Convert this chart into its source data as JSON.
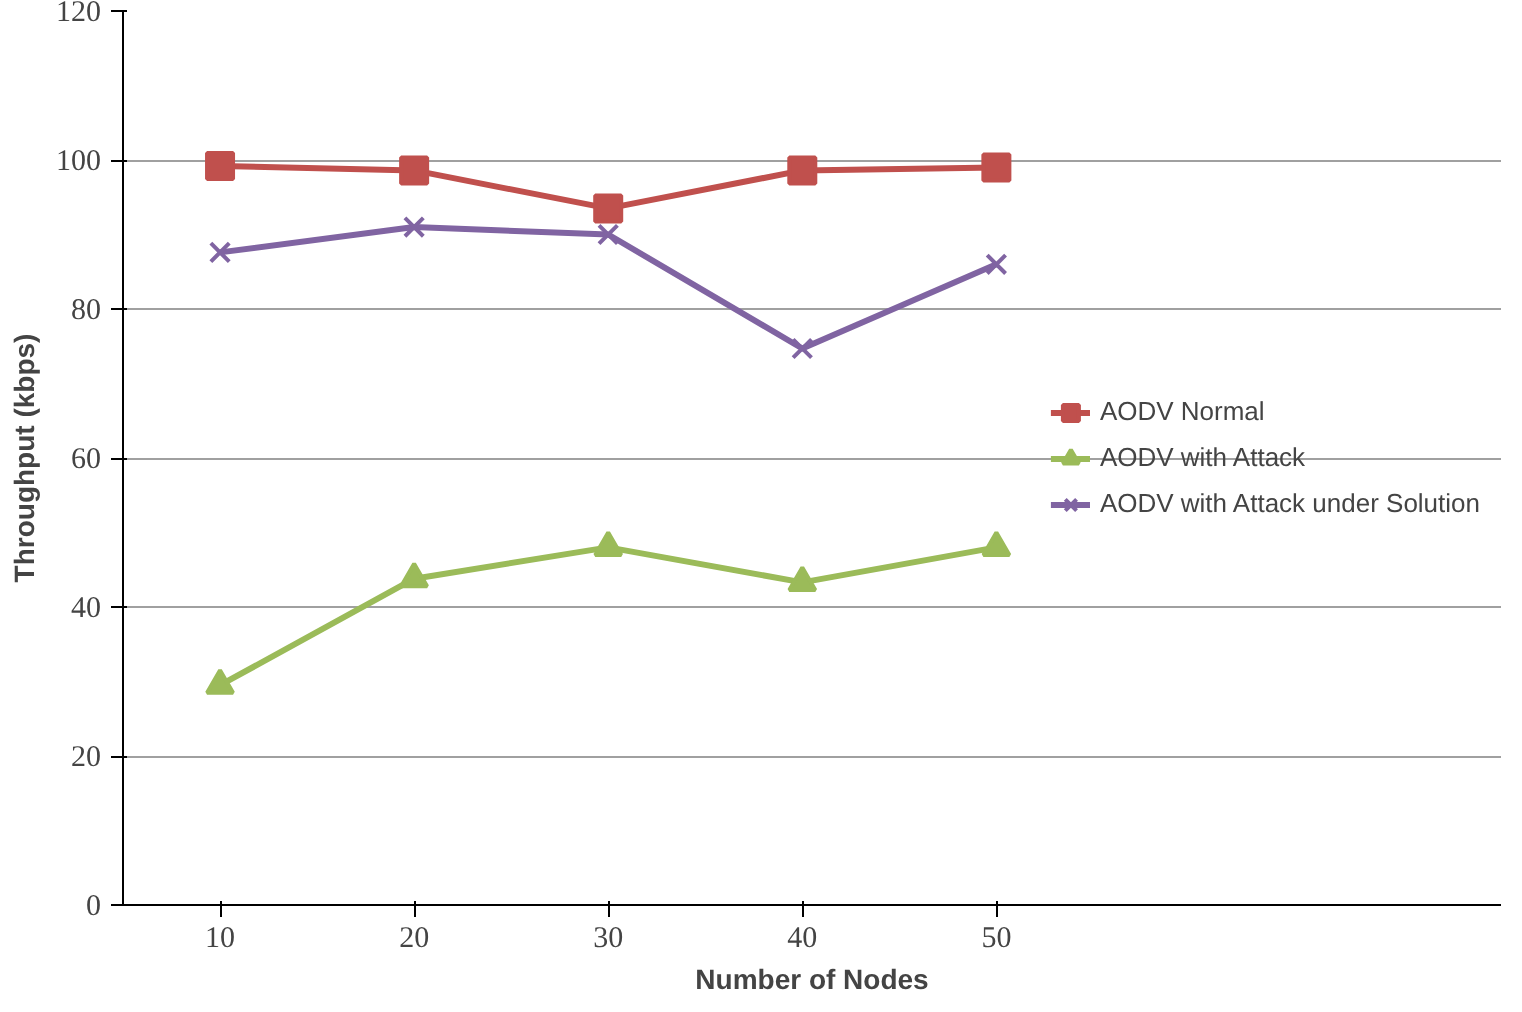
{
  "chart_data": {
    "type": "line",
    "xlabel": "Number of Nodes",
    "ylabel": "Throughput (kbps)",
    "categories": [
      "10",
      "20",
      "30",
      "40",
      "50"
    ],
    "ylim": [
      0,
      120
    ],
    "yticks": [
      0,
      20,
      40,
      60,
      80,
      100,
      120
    ],
    "grid": "y",
    "legend": "right",
    "series": [
      {
        "name": "AODV Normal",
        "color": "#c0504d",
        "marker": "square",
        "values": [
          99.2,
          98.6,
          93.5,
          98.6,
          99
        ]
      },
      {
        "name": "AODV with Attack",
        "color": "#9bbb59",
        "marker": "triangle",
        "values": [
          29.5,
          43.8,
          48,
          43.3,
          48
        ]
      },
      {
        "name": "AODV with Attack under Solution",
        "color": "#8064a2",
        "marker": "cross",
        "values": [
          87.6,
          91,
          90,
          74.7,
          86
        ]
      }
    ]
  }
}
